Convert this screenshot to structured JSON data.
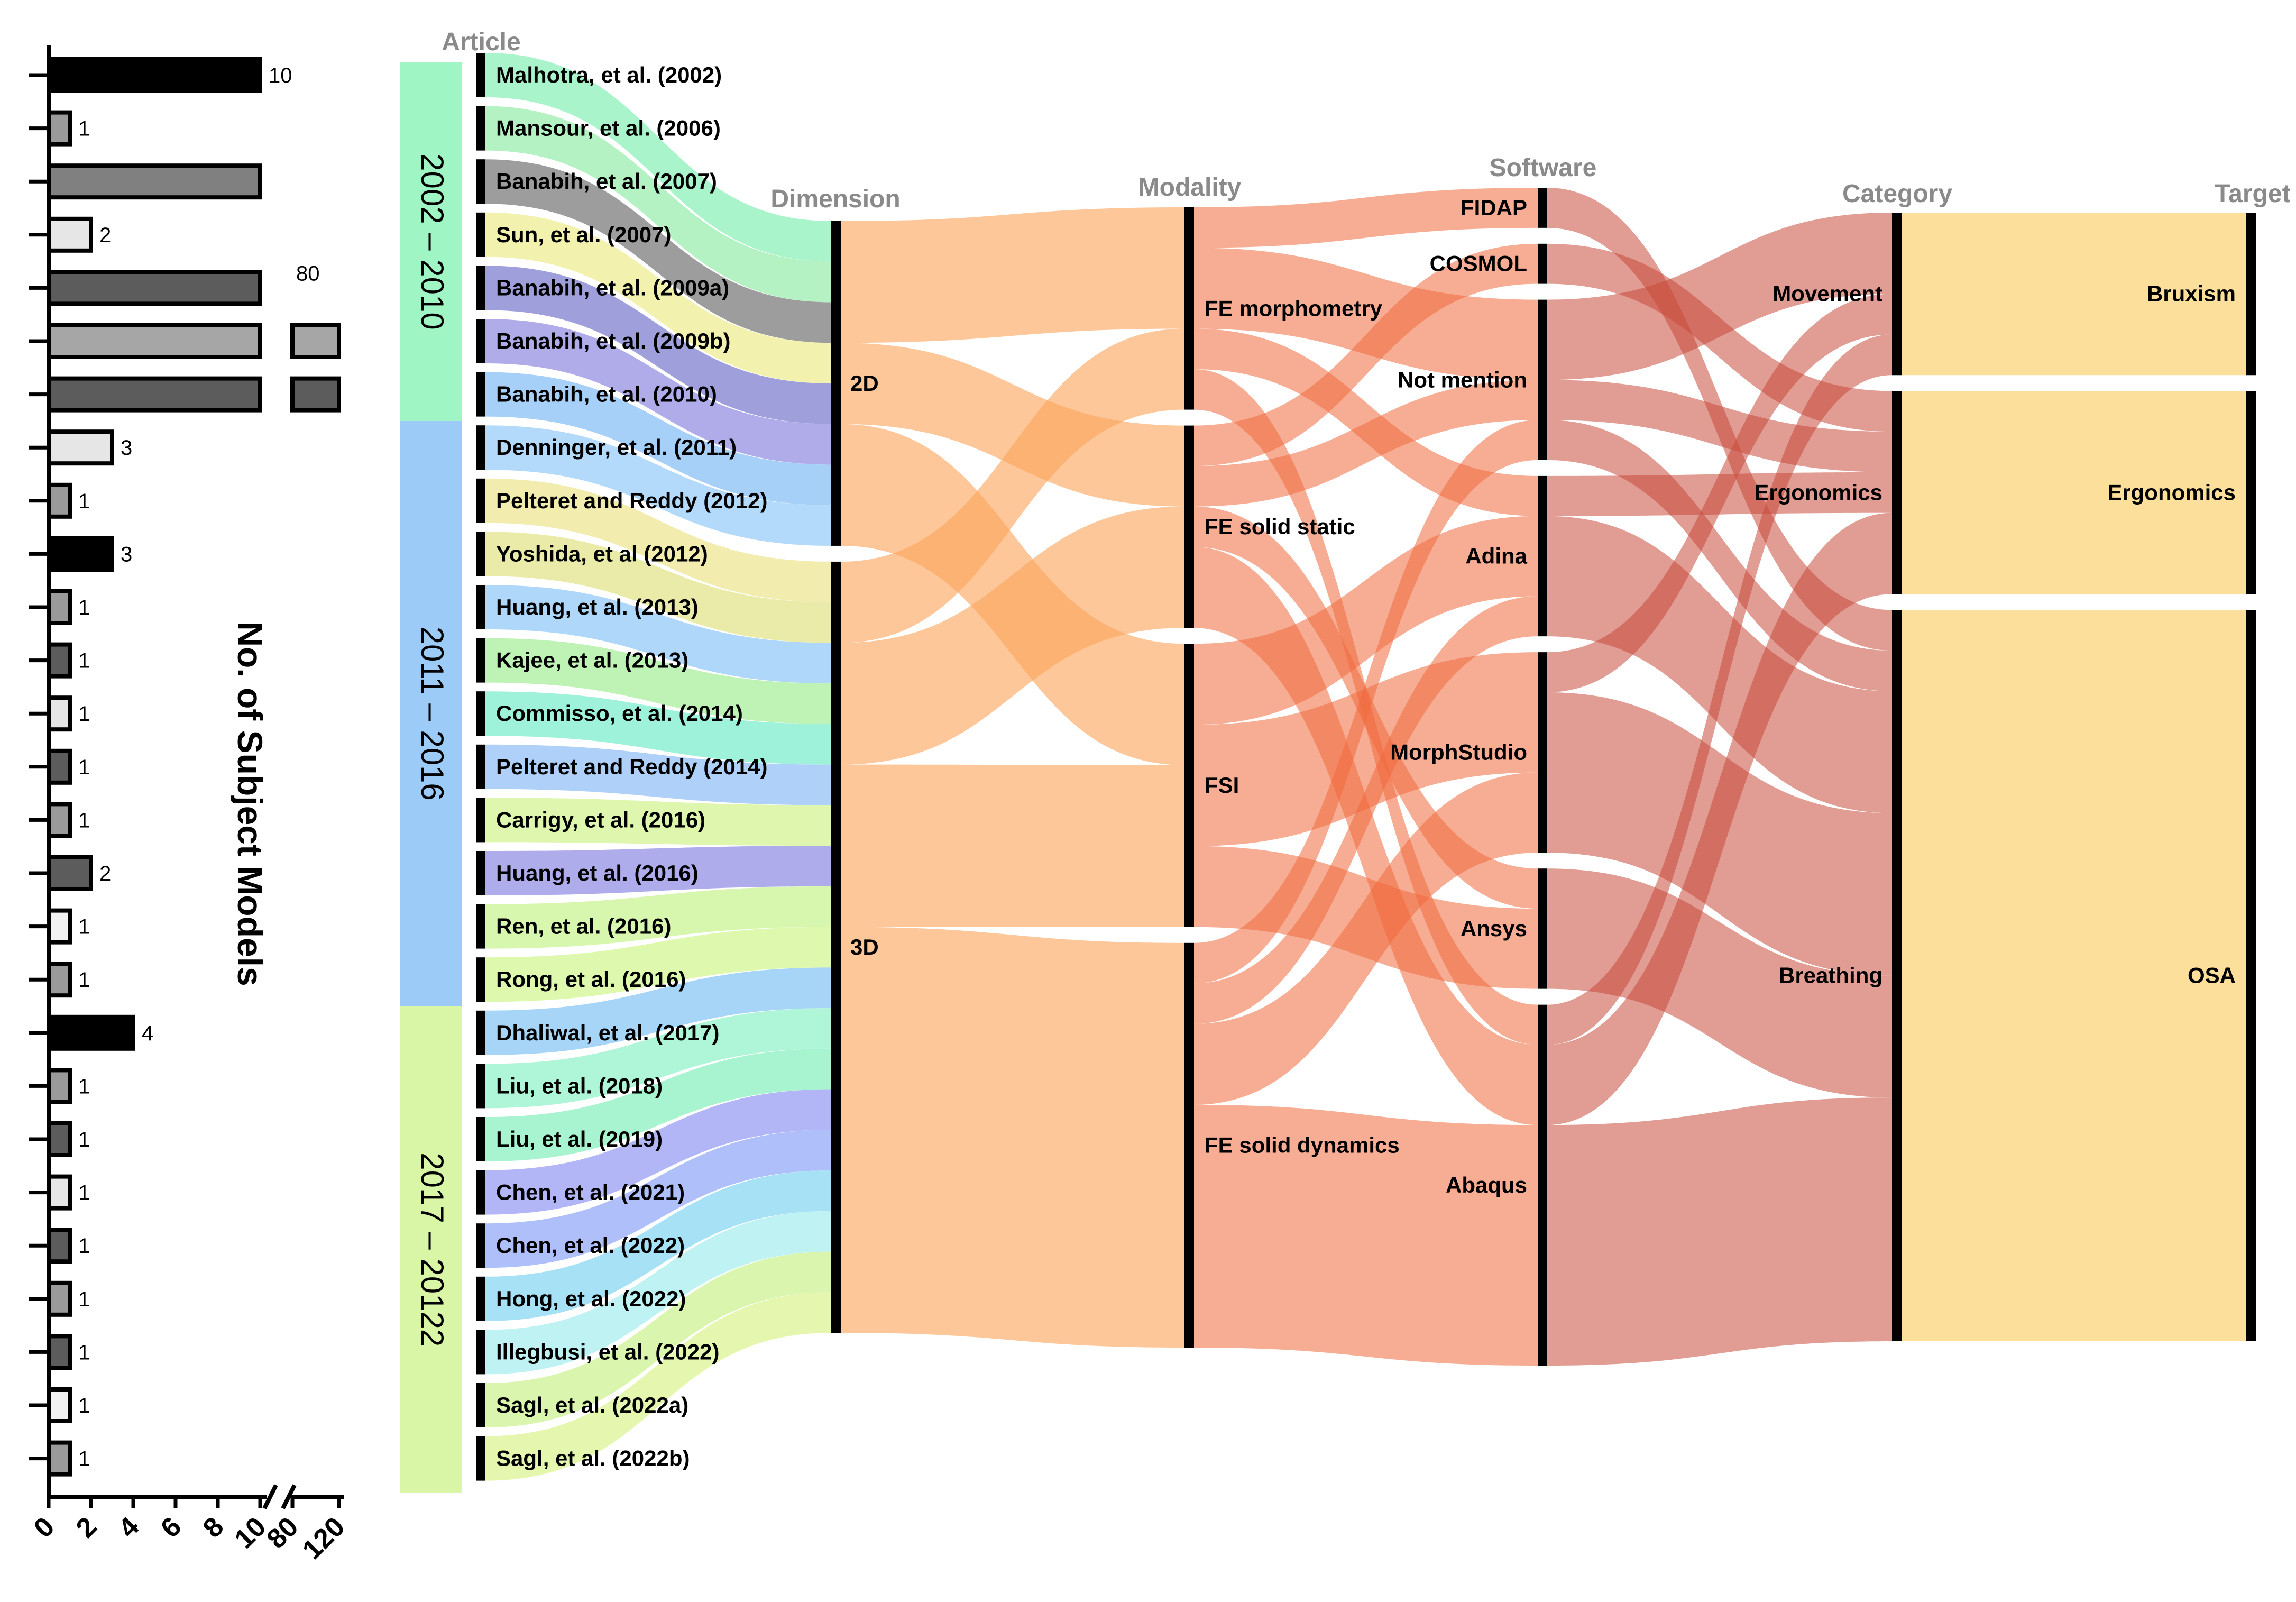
{
  "chart_data": {
    "type": "sankey",
    "bar_chart": {
      "type": "bar",
      "orientation": "horizontal",
      "xlabel": "No. of Subject Models",
      "x_ticks": [
        "0",
        "2",
        "4",
        "6",
        "8",
        "10",
        "80",
        "120"
      ],
      "axis_break": [
        10,
        80
      ],
      "articles": [
        "Malhotra, et al. (2002)",
        "Mansour, et al. (2006)",
        "Banabih, et al. (2007)",
        "Sun, et al. (2007)",
        "Banabih, et al. (2009a)",
        "Banabih, et al. (2009b)",
        "Banabih, et al. (2010)",
        "Denninger, et al. (2011)",
        "Pelteret and Reddy (2012)",
        "Yoshida, et al (2012)",
        "Huang, et al. (2013)",
        "Kajee, et al. (2013)",
        "Commisso, et al. (2014)",
        "Pelteret and Reddy (2014)",
        "Carrigy, et al. (2016)",
        "Huang, et al. (2016)",
        "Ren, et al. (2016)",
        "Rong, et al. (2016)",
        "Dhaliwal, et al. (2017)",
        "Liu, et al. (2018)",
        "Liu, et al. (2019)",
        "Chen, et al. (2021)",
        "Chen, et al. (2022)",
        "Hong, et al. (2022)",
        "Illegbusi, et al. (2022)",
        "Sagl, et al. (2022a)",
        "Sagl, et al. (2022b)"
      ],
      "values": [
        10,
        1,
        10,
        2,
        80,
        120,
        120,
        3,
        1,
        3,
        1,
        1,
        1,
        1,
        1,
        2,
        1,
        1,
        4,
        1,
        1,
        1,
        1,
        1,
        1,
        1,
        1
      ],
      "value_labels": [
        "10",
        "1",
        "",
        "2",
        "80",
        "",
        "",
        "3",
        "1",
        "3",
        "1",
        "1",
        "1",
        "1",
        "1",
        "2",
        "1",
        "1",
        "4",
        "1",
        "1",
        "1",
        "1",
        "1",
        "1",
        "1",
        "1"
      ],
      "bar_colors": [
        "#000000",
        "#9a9a9a",
        "#808080",
        "#e6e6e6",
        "#5c5c5c",
        "#a6a6a6",
        "#5c5c5c",
        "#e6e6e6",
        "#9a9a9a",
        "#000000",
        "#9a9a9a",
        "#5c5c5c",
        "#e6e6e6",
        "#5c5c5c",
        "#9a9a9a",
        "#5c5c5c",
        "#f2f2f2",
        "#9a9a9a",
        "#000000",
        "#9a9a9a",
        "#5c5c5c",
        "#e6e6e6",
        "#5c5c5c",
        "#9a9a9a",
        "#5c5c5c",
        "#f2f2f2",
        "#9a9a9a"
      ]
    },
    "headers": {
      "article": "Article",
      "dimension": "Dimension",
      "modality": "Modality",
      "software": "Software",
      "category": "Category",
      "target": "Target"
    },
    "periods": [
      {
        "label": "2002 – 2010",
        "first": 0,
        "last": 6,
        "color": "#9ff5c4"
      },
      {
        "label": "2011 – 2016",
        "first": 7,
        "last": 17,
        "color": "#9ccbf7"
      },
      {
        "label": "2017 – 20122",
        "first": 18,
        "last": 26,
        "color": "#d9f5a6"
      }
    ],
    "article_colors": [
      "#9af2c2",
      "#a8f0b8",
      "#8c8c8c",
      "#f0f0a0",
      "#8e8ed6",
      "#a29ee6",
      "#96c8f6",
      "#a6d4fa",
      "#f0eaa0",
      "#e8e89a",
      "#a0d0f8",
      "#b4f0a8",
      "#8ef0d4",
      "#a0c8f8",
      "#d8f4a0",
      "#a09ee8",
      "#d0f4a0",
      "#d8f8a0",
      "#96cef6",
      "#a0f4d0",
      "#9af2c8",
      "#a4a8f4",
      "#a0b4f8",
      "#98dcf4",
      "#b4f0f0",
      "#d4f4a0",
      "#e0f4a0"
    ],
    "dimension": {
      "nodes": [
        "2D",
        "3D"
      ],
      "links": [
        "2D",
        "2D",
        "2D",
        "2D",
        "2D",
        "2D",
        "2D",
        "2D",
        "3D",
        "3D",
        "3D",
        "3D",
        "3D",
        "3D",
        "3D",
        "3D",
        "3D",
        "3D",
        "3D",
        "3D",
        "3D",
        "3D",
        "3D",
        "3D",
        "3D",
        "3D",
        "3D"
      ]
    },
    "modality": {
      "nodes": [
        "FE morphometry",
        "FE solid static",
        "FSI",
        "FE solid dynamics"
      ]
    },
    "software": {
      "nodes": [
        "FIDAP",
        "COSMOL",
        "Not mention",
        "Adina",
        "MorphStudio",
        "Ansys",
        "Abaqus"
      ]
    },
    "category": {
      "nodes": [
        "Movement",
        "Ergonomics",
        "Breathing"
      ]
    },
    "target": {
      "nodes": [
        "Bruxism",
        "Ergonomics",
        "OSA"
      ]
    },
    "flows_dim_mod": [
      [
        "2D",
        "FE morphometry",
        3
      ],
      [
        "2D",
        "FE solid static",
        2
      ],
      [
        "2D",
        "FSI",
        3
      ],
      [
        "3D",
        "FE morphometry",
        2
      ],
      [
        "3D",
        "FE solid static",
        3
      ],
      [
        "3D",
        "FSI",
        4
      ],
      [
        "3D",
        "FE solid dynamics",
        10
      ]
    ],
    "flows_mod_sw": [
      [
        "FE morphometry",
        "FIDAP",
        1
      ],
      [
        "FE morphometry",
        "Not mention",
        2
      ],
      [
        "FE morphometry",
        "Adina",
        1
      ],
      [
        "FE morphometry",
        "Abaqus",
        1
      ],
      [
        "FE solid static",
        "COSMOL",
        1
      ],
      [
        "FE solid static",
        "Not mention",
        1
      ],
      [
        "FE solid static",
        "Ansys",
        1
      ],
      [
        "FE solid static",
        "Abaqus",
        2
      ],
      [
        "FSI",
        "Adina",
        2
      ],
      [
        "FSI",
        "MorphStudio",
        3
      ],
      [
        "FSI",
        "Ansys",
        2
      ],
      [
        "FE solid dynamics",
        "Not mention",
        1
      ],
      [
        "FE solid dynamics",
        "Adina",
        1
      ],
      [
        "FE solid dynamics",
        "MorphStudio",
        2
      ],
      [
        "FE solid dynamics",
        "Abaqus",
        6
      ]
    ],
    "flows_sw_cat": [
      [
        "FIDAP",
        "Breathing",
        1
      ],
      [
        "COSMOL",
        "Ergonomics",
        1
      ],
      [
        "Not mention",
        "Movement",
        2
      ],
      [
        "Not mention",
        "Ergonomics",
        1
      ],
      [
        "Not mention",
        "Breathing",
        1
      ],
      [
        "Adina",
        "Ergonomics",
        1
      ],
      [
        "Adina",
        "Breathing",
        3
      ],
      [
        "MorphStudio",
        "Movement",
        1
      ],
      [
        "MorphStudio",
        "Breathing",
        4
      ],
      [
        "Ansys",
        "Breathing",
        3
      ],
      [
        "Abaqus",
        "Movement",
        1
      ],
      [
        "Abaqus",
        "Ergonomics",
        2
      ],
      [
        "Abaqus",
        "Breathing",
        6
      ]
    ],
    "flows_cat_tgt": [
      [
        "Movement",
        "Bruxism",
        4
      ],
      [
        "Ergonomics",
        "Ergonomics",
        5
      ],
      [
        "Breathing",
        "OSA",
        18
      ]
    ]
  }
}
